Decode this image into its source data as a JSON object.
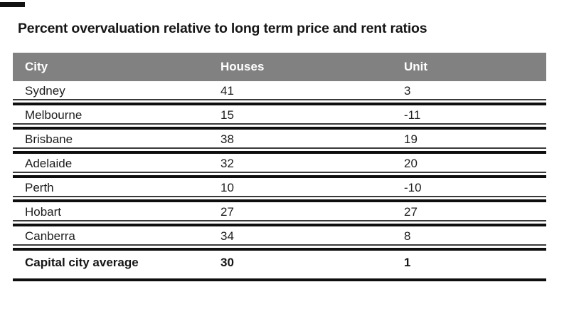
{
  "title": "Percent overvaluation relative to long term price and rent ratios",
  "colors": {
    "header_bg": "#818181",
    "header_text": "#ffffff",
    "body_text": "#1d1d1d",
    "thick_line": "#0e0e0e",
    "thin_line": "#3a3a3a"
  },
  "table": {
    "columns": {
      "city": "City",
      "houses": "Houses",
      "unit": "Unit"
    },
    "rows": [
      {
        "city": "Sydney",
        "houses": "41",
        "unit": "3"
      },
      {
        "city": "Melbourne",
        "houses": "15",
        "unit": "-11"
      },
      {
        "city": "Brisbane",
        "houses": "38",
        "unit": "19"
      },
      {
        "city": "Adelaide",
        "houses": "32",
        "unit": "20"
      },
      {
        "city": "Perth",
        "houses": "10",
        "unit": "-10"
      },
      {
        "city": "Hobart",
        "houses": "27",
        "unit": "27"
      },
      {
        "city": "Canberra",
        "houses": "34",
        "unit": "8"
      },
      {
        "city": "Capital city average",
        "houses": "30",
        "unit": "1"
      }
    ]
  },
  "chart_data": {
    "type": "table",
    "title": "Percent overvaluation relative to long term price and rent ratios",
    "columns": [
      "City",
      "Houses",
      "Unit"
    ],
    "categories": [
      "Sydney",
      "Melbourne",
      "Brisbane",
      "Adelaide",
      "Perth",
      "Hobart",
      "Canberra",
      "Capital city average"
    ],
    "series": [
      {
        "name": "Houses",
        "values": [
          41,
          15,
          38,
          32,
          10,
          27,
          34,
          30
        ]
      },
      {
        "name": "Unit",
        "values": [
          3,
          -11,
          19,
          20,
          -10,
          27,
          8,
          1
        ]
      }
    ],
    "units": "percent overvaluation",
    "notes": "Final row is the capital city average shown in bold"
  }
}
